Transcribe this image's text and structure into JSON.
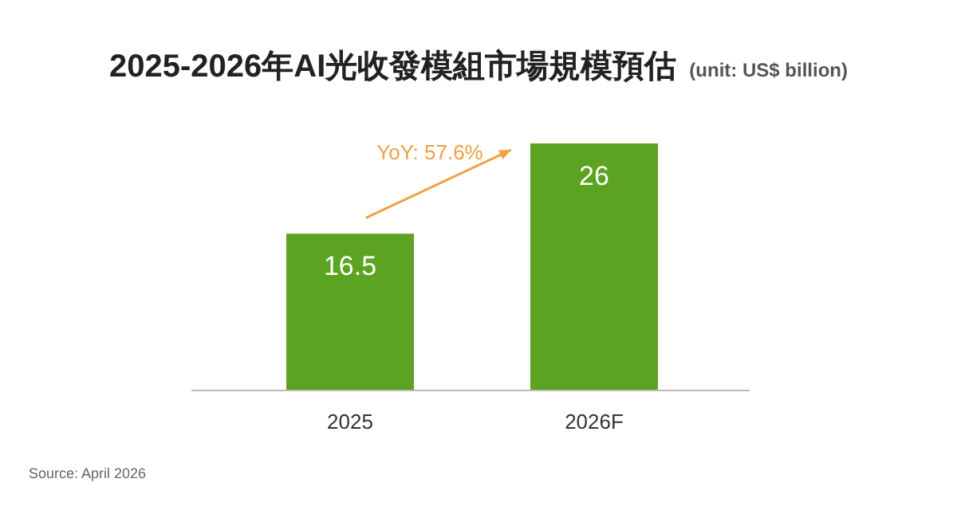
{
  "chart_data": {
    "type": "bar",
    "title": "2025-2026年AI光收發模組市場規模預估",
    "subtitle": "(unit: US$ billion)",
    "categories": [
      "2025",
      "2026F"
    ],
    "values": [
      16.5,
      26
    ],
    "color": "#5ba320",
    "data_labels": true,
    "annotations": [
      {
        "text": "YoY: 57.6%"
      },
      "Source: April 2026"
    ]
  }
}
